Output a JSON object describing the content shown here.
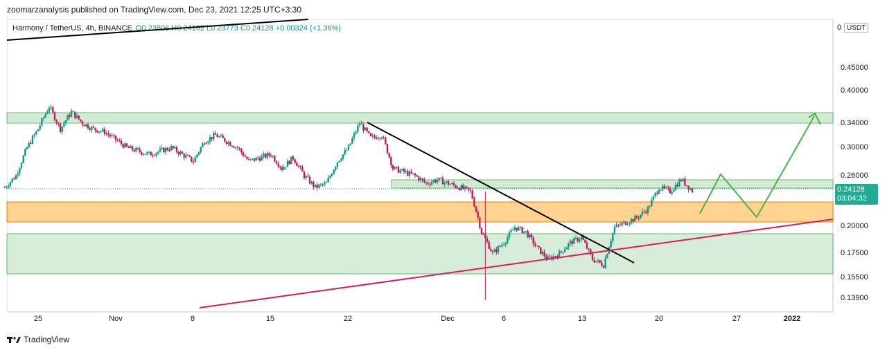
{
  "header": {
    "publisher": "zoomarzanalysis published on TradingView.com, Dec 23, 2021 12:25 UTC+3:30"
  },
  "legend": {
    "symbol": "Harmony / TetherUS, 4h, BINANCE",
    "ohlc": "O0.23806  H0.24162  L0.23773  C0.24128  +0.00324 (+1.36%)"
  },
  "price_axis": {
    "top_label": "0",
    "currency": "USDT"
  },
  "last_price": {
    "value": "0.24128",
    "countdown": "03:04:32"
  },
  "footer": {
    "brand": "TradingView"
  },
  "colors": {
    "up": "#089981",
    "down": "#c2185b",
    "resistance_zone": "#c8e6c9",
    "support_zone": "#ffcc80",
    "trendline": "#000000",
    "rising_line": "#d81b60",
    "projection": "#4caf50"
  },
  "chart_data": {
    "type": "candlestick",
    "symbol": "Harmony / TetherUS",
    "interval": "4h",
    "exchange": "BINANCE",
    "y_scale": "log",
    "ylim": [
      0.13,
      0.52
    ],
    "y_ticks": [
      "0.45000",
      "0.40000",
      "0.34000",
      "0.30000",
      "0.26000",
      "0.20000",
      "0.17500",
      "0.15500",
      "0.13900"
    ],
    "x_ticks": [
      "25",
      "Nov",
      "8",
      "15",
      "22",
      "Dec",
      "6",
      "13",
      "20",
      "27",
      "2022"
    ],
    "last": {
      "open": 0.23806,
      "high": 0.24162,
      "low": 0.23773,
      "close": 0.24128,
      "change": 0.00324,
      "change_pct": 1.36
    },
    "price_path": [
      [
        "2021-10-22",
        0.245
      ],
      [
        "2021-10-23",
        0.26
      ],
      [
        "2021-10-24",
        0.3
      ],
      [
        "2021-10-25",
        0.33
      ],
      [
        "2021-10-26",
        0.37
      ],
      [
        "2021-10-27",
        0.33
      ],
      [
        "2021-10-28",
        0.36
      ],
      [
        "2021-10-29",
        0.34
      ],
      [
        "2021-10-30",
        0.33
      ],
      [
        "2021-10-31",
        0.325
      ],
      [
        "2021-11-02",
        0.3
      ],
      [
        "2021-11-04",
        0.29
      ],
      [
        "2021-11-06",
        0.3
      ],
      [
        "2021-11-08",
        0.28
      ],
      [
        "2021-11-09",
        0.31
      ],
      [
        "2021-11-10",
        0.32
      ],
      [
        "2021-11-11",
        0.31
      ],
      [
        "2021-11-12",
        0.3
      ],
      [
        "2021-11-13",
        0.28
      ],
      [
        "2021-11-15",
        0.29
      ],
      [
        "2021-11-16",
        0.27
      ],
      [
        "2021-11-17",
        0.285
      ],
      [
        "2021-11-18",
        0.26
      ],
      [
        "2021-11-19",
        0.245
      ],
      [
        "2021-11-20",
        0.25
      ],
      [
        "2021-11-21",
        0.28
      ],
      [
        "2021-11-22",
        0.3
      ],
      [
        "2021-11-23",
        0.34
      ],
      [
        "2021-11-24",
        0.315
      ],
      [
        "2021-11-25",
        0.32
      ],
      [
        "2021-11-26",
        0.27
      ],
      [
        "2021-11-27",
        0.265
      ],
      [
        "2021-11-28",
        0.26
      ],
      [
        "2021-11-29",
        0.25
      ],
      [
        "2021-11-30",
        0.255
      ],
      [
        "2021-12-01",
        0.25
      ],
      [
        "2021-12-02",
        0.245
      ],
      [
        "2021-12-03",
        0.24
      ],
      [
        "2021-12-04",
        0.195
      ],
      [
        "2021-12-05",
        0.175
      ],
      [
        "2021-12-06",
        0.185
      ],
      [
        "2021-12-07",
        0.2
      ],
      [
        "2021-12-08",
        0.195
      ],
      [
        "2021-12-09",
        0.18
      ],
      [
        "2021-12-10",
        0.17
      ],
      [
        "2021-12-11",
        0.175
      ],
      [
        "2021-12-12",
        0.185
      ],
      [
        "2021-12-13",
        0.19
      ],
      [
        "2021-12-14",
        0.17
      ],
      [
        "2021-12-15",
        0.165
      ],
      [
        "2021-12-16",
        0.2
      ],
      [
        "2021-12-17",
        0.205
      ],
      [
        "2021-12-18",
        0.21
      ],
      [
        "2021-12-19",
        0.22
      ],
      [
        "2021-12-20",
        0.245
      ],
      [
        "2021-12-21",
        0.24
      ],
      [
        "2021-12-22",
        0.255
      ],
      [
        "2021-12-23",
        0.241
      ]
    ]
  }
}
